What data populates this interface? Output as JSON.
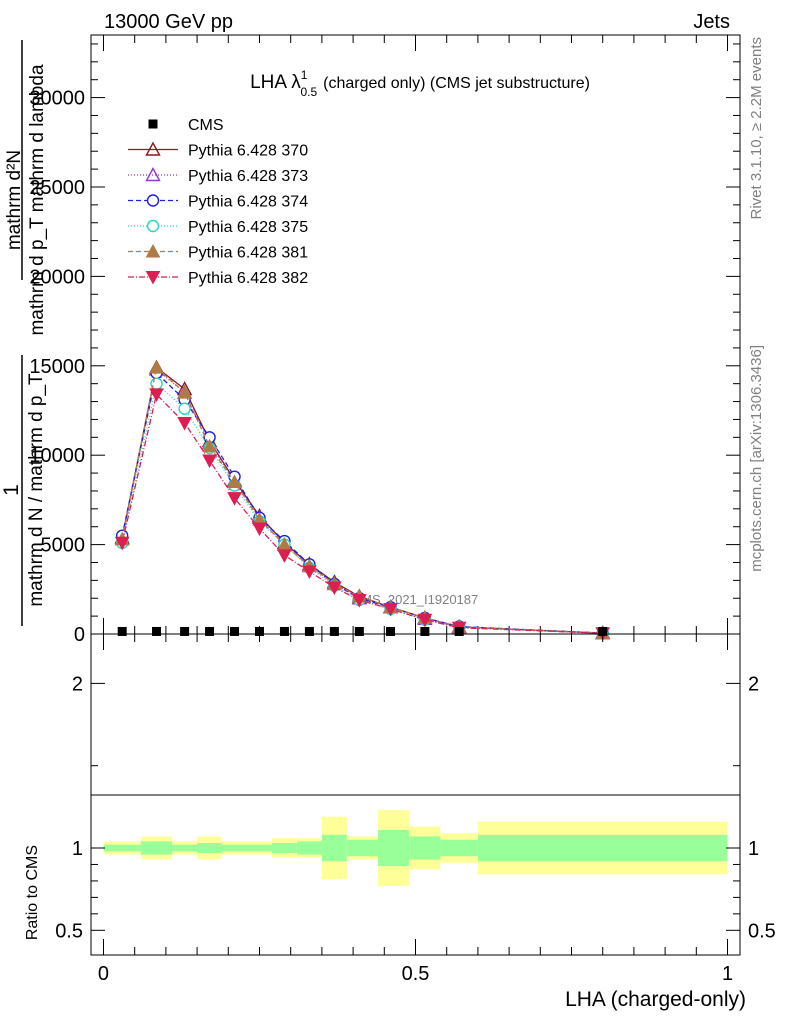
{
  "header": {
    "left": "13000 GeV pp",
    "right": "Jets"
  },
  "side_text": {
    "rivet": "Rivet 3.1.10, ≥ 2.2M events",
    "mcplots": "mcplots.cern.ch [arXiv:1306.3436]"
  },
  "watermark": "CMS_2021_I1920187",
  "colors": {
    "cms": "#000000",
    "p370": "#8b1a1a",
    "p373": "#9932cc",
    "p374": "#1e1ee6",
    "p375": "#20d8c0",
    "p381": "#b07a45",
    "p382": "#dc1e50",
    "band_inner": "#99ff99",
    "band_outer": "#ffff99"
  },
  "chart_data": [
    {
      "type": "line",
      "title": "LHA λ",
      "title_sup": "1",
      "title_sub": "0.5",
      "title_rest": "(charged only) (CMS jet substructure)",
      "ylabel_num": "mathrm d²N",
      "ylabel_den": "mathrm d p_T mathrm d lambda",
      "ylabel_num2": "1",
      "ylabel_den2": "mathrm d N / mathrm d p_T",
      "ylim": [
        0,
        33500
      ],
      "xlim": [
        -0.02,
        1.02
      ],
      "yticks": [
        "0",
        "5000",
        "10000",
        "15000",
        "20000",
        "25000",
        "30000"
      ],
      "ytick_values": [
        0,
        5000,
        10000,
        15000,
        20000,
        25000,
        30000
      ],
      "legend_position": "top-left",
      "x": [
        0.03,
        0.085,
        0.13,
        0.17,
        0.21,
        0.25,
        0.29,
        0.33,
        0.37,
        0.41,
        0.46,
        0.515,
        0.57,
        0.8
      ],
      "cms": {
        "name": "CMS",
        "values": [
          30,
          30,
          30,
          30,
          30,
          30,
          30,
          30,
          30,
          30,
          30,
          30,
          30,
          30
        ]
      },
      "series": [
        {
          "name": "Pythia 6.428 370",
          "key": "p370",
          "marker": "triangle-open",
          "dash": "",
          "values": [
            5400,
            14900,
            13700,
            10800,
            8600,
            6600,
            5100,
            3900,
            2900,
            2100,
            1500,
            900,
            400,
            50
          ]
        },
        {
          "name": "Pythia 6.428 373",
          "key": "p373",
          "marker": "triangle-open",
          "dash": "1,2",
          "values": [
            5300,
            14800,
            13500,
            10700,
            8500,
            6500,
            5000,
            3800,
            2800,
            2000,
            1500,
            850,
            380,
            50
          ]
        },
        {
          "name": "Pythia 6.428 374",
          "key": "p374",
          "marker": "circle-open",
          "dash": "5,3",
          "values": [
            5500,
            14600,
            13100,
            11000,
            8800,
            6500,
            5200,
            3900,
            2800,
            2000,
            1500,
            900,
            420,
            50
          ]
        },
        {
          "name": "Pythia 6.428 375",
          "key": "p375",
          "marker": "circle-open",
          "dash": "1,2",
          "values": [
            5100,
            14000,
            12600,
            10400,
            8300,
            6300,
            5000,
            3700,
            2700,
            1900,
            1400,
            800,
            380,
            40
          ]
        },
        {
          "name": "Pythia 6.428 381",
          "key": "p381",
          "marker": "triangle-filled",
          "dash": "5,3",
          "values": [
            5300,
            14900,
            13500,
            10500,
            8500,
            6400,
            5000,
            3800,
            2800,
            2100,
            1500,
            900,
            400,
            50
          ]
        },
        {
          "name": "Pythia 6.428 382",
          "key": "p382",
          "marker": "triangle-down-filled",
          "dash": "6,2,1,2",
          "values": [
            5100,
            13400,
            11800,
            9700,
            7600,
            5900,
            4400,
            3500,
            2600,
            1900,
            1400,
            800,
            350,
            40
          ]
        }
      ]
    },
    {
      "type": "area",
      "ylabel": "Ratio to CMS",
      "xlabel": "LHA (charged-only)",
      "ylim": [
        0.35,
        2.3
      ],
      "xticks": [
        "0",
        "0.5",
        "1"
      ],
      "xtick_values": [
        0,
        0.5,
        1
      ],
      "yticks": [
        "0.5",
        "1",
        "2"
      ],
      "ytick_values": [
        0.5,
        1,
        2
      ],
      "bins": [
        [
          0.0,
          0.06
        ],
        [
          0.06,
          0.11
        ],
        [
          0.11,
          0.15
        ],
        [
          0.15,
          0.19
        ],
        [
          0.19,
          0.23
        ],
        [
          0.23,
          0.27
        ],
        [
          0.27,
          0.31
        ],
        [
          0.31,
          0.35
        ],
        [
          0.35,
          0.39
        ],
        [
          0.39,
          0.44
        ],
        [
          0.44,
          0.49
        ],
        [
          0.49,
          0.54
        ],
        [
          0.54,
          0.6
        ],
        [
          0.6,
          1.0
        ]
      ],
      "inner_lo": [
        0.98,
        0.96,
        0.98,
        0.97,
        0.98,
        0.98,
        0.97,
        0.96,
        0.92,
        0.95,
        0.89,
        0.93,
        0.95,
        0.92
      ],
      "inner_hi": [
        1.02,
        1.04,
        1.02,
        1.03,
        1.02,
        1.02,
        1.03,
        1.04,
        1.08,
        1.05,
        1.11,
        1.07,
        1.05,
        1.08
      ],
      "outer_lo": [
        0.96,
        0.93,
        0.96,
        0.93,
        0.96,
        0.96,
        0.94,
        0.94,
        0.81,
        0.93,
        0.77,
        0.87,
        0.91,
        0.84
      ],
      "outer_hi": [
        1.04,
        1.07,
        1.04,
        1.07,
        1.04,
        1.04,
        1.06,
        1.06,
        1.19,
        1.07,
        1.23,
        1.13,
        1.09,
        1.16
      ]
    }
  ]
}
